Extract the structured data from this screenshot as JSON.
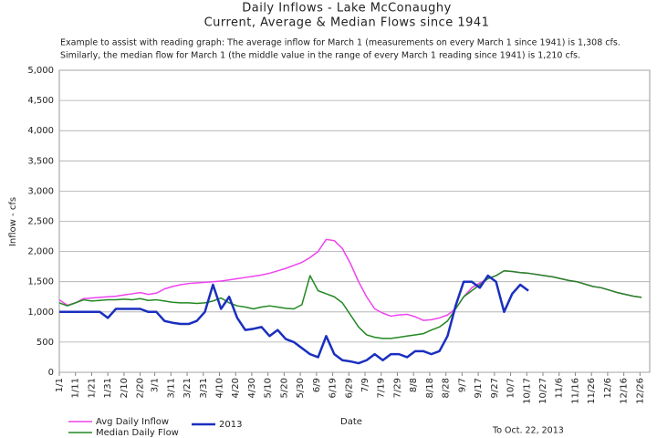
{
  "chart_data": {
    "type": "line",
    "title": "Daily Inflows - Lake McConaughy",
    "subtitle": "Current, Average & Median Flows since 1941",
    "annotations": [
      "Example to assist with reading graph:  The average inflow for March 1 (measurements on every March 1 since 1941) is 1,308 cfs.",
      "Similarly,  the median flow for March 1 (the middle value in the range of every March 1 reading since 1941)  is 1,210 cfs.",
      "To Oct. 22, 2013"
    ],
    "y_label": "Inflow  -  cfs",
    "x_label": "Date",
    "x": [
      1,
      6,
      11,
      16,
      21,
      26,
      31,
      36,
      41,
      46,
      51,
      56,
      61,
      66,
      71,
      76,
      81,
      86,
      91,
      96,
      101,
      106,
      111,
      116,
      121,
      126,
      131,
      136,
      141,
      146,
      151,
      156,
      161,
      166,
      171,
      176,
      181,
      186,
      191,
      196,
      201,
      206,
      211,
      216,
      221,
      226,
      231,
      236,
      241,
      246,
      251,
      256,
      261,
      266,
      271,
      276,
      281,
      286,
      291,
      296,
      301,
      306,
      311,
      316,
      321,
      326,
      331,
      336,
      341,
      346,
      351,
      356,
      361
    ],
    "xlim": [
      1,
      366
    ],
    "xticks": [
      {
        "value": 1,
        "label": "1/1"
      },
      {
        "value": 11,
        "label": "1/11"
      },
      {
        "value": 21,
        "label": "1/21"
      },
      {
        "value": 31,
        "label": "1/31"
      },
      {
        "value": 41,
        "label": "2/10"
      },
      {
        "value": 51,
        "label": "2/20"
      },
      {
        "value": 60,
        "label": "3/1"
      },
      {
        "value": 70,
        "label": "3/11"
      },
      {
        "value": 80,
        "label": "3/21"
      },
      {
        "value": 90,
        "label": "3/31"
      },
      {
        "value": 100,
        "label": "4/10"
      },
      {
        "value": 110,
        "label": "4/20"
      },
      {
        "value": 120,
        "label": "4/30"
      },
      {
        "value": 130,
        "label": "5/10"
      },
      {
        "value": 140,
        "label": "5/20"
      },
      {
        "value": 150,
        "label": "5/30"
      },
      {
        "value": 160,
        "label": "6/9"
      },
      {
        "value": 170,
        "label": "6/19"
      },
      {
        "value": 180,
        "label": "6/29"
      },
      {
        "value": 190,
        "label": "7/9"
      },
      {
        "value": 200,
        "label": "7/19"
      },
      {
        "value": 210,
        "label": "7/29"
      },
      {
        "value": 220,
        "label": "8/8"
      },
      {
        "value": 230,
        "label": "8/18"
      },
      {
        "value": 240,
        "label": "8/28"
      },
      {
        "value": 250,
        "label": "9/7"
      },
      {
        "value": 260,
        "label": "9/17"
      },
      {
        "value": 270,
        "label": "9/27"
      },
      {
        "value": 280,
        "label": "10/7"
      },
      {
        "value": 290,
        "label": "10/17"
      },
      {
        "value": 300,
        "label": "10/27"
      },
      {
        "value": 310,
        "label": "11/6"
      },
      {
        "value": 320,
        "label": "11/16"
      },
      {
        "value": 330,
        "label": "11/26"
      },
      {
        "value": 340,
        "label": "12/6"
      },
      {
        "value": 350,
        "label": "12/16"
      },
      {
        "value": 360,
        "label": "12/26"
      }
    ],
    "ylim": [
      0,
      5000
    ],
    "yticks": [
      0,
      500,
      {
        "value": 1000,
        "label": "1,000"
      },
      {
        "value": 1500,
        "label": "1,500"
      },
      {
        "value": 2000,
        "label": "2,000"
      },
      {
        "value": 2500,
        "label": "2,500"
      },
      {
        "value": 3000,
        "label": "3,000"
      },
      {
        "value": 3500,
        "label": "3,500"
      },
      {
        "value": 4000,
        "label": "4,000"
      },
      {
        "value": 4500,
        "label": "4,500"
      },
      {
        "value": 5000,
        "label": "5,000"
      }
    ],
    "grid": true,
    "series": [
      {
        "name": "Avg Daily Inflow",
        "color": "#ee44ee",
        "width": 1.5,
        "values": [
          1200,
          1110,
          1150,
          1220,
          1230,
          1240,
          1250,
          1260,
          1280,
          1300,
          1320,
          1290,
          1310,
          1380,
          1420,
          1450,
          1470,
          1480,
          1490,
          1500,
          1510,
          1530,
          1550,
          1570,
          1590,
          1610,
          1640,
          1680,
          1720,
          1770,
          1820,
          1900,
          2000,
          2200,
          2180,
          2050,
          1800,
          1500,
          1250,
          1050,
          980,
          930,
          950,
          960,
          920,
          860,
          870,
          900,
          950,
          1050,
          1250,
          1400,
          1480,
          1550,
          1600,
          1680,
          1670,
          1650,
          1640,
          1620,
          1600,
          1580,
          1550,
          1520,
          1500,
          1460,
          1420,
          1400,
          1360,
          1320,
          1290,
          1260,
          1240
        ]
      },
      {
        "name": "Median Daily Flow",
        "color": "#228822",
        "width": 1.5,
        "values": [
          1150,
          1100,
          1150,
          1200,
          1180,
          1190,
          1200,
          1200,
          1210,
          1200,
          1220,
          1190,
          1200,
          1180,
          1160,
          1150,
          1150,
          1140,
          1150,
          1180,
          1230,
          1150,
          1100,
          1080,
          1050,
          1080,
          1100,
          1080,
          1060,
          1050,
          1120,
          1600,
          1350,
          1300,
          1250,
          1150,
          950,
          750,
          620,
          580,
          560,
          560,
          580,
          600,
          620,
          640,
          700,
          750,
          850,
          1050,
          1250,
          1350,
          1450,
          1550,
          1600,
          1680,
          1670,
          1650,
          1640,
          1620,
          1600,
          1580,
          1550,
          1520,
          1500,
          1460,
          1420,
          1400,
          1360,
          1320,
          1290,
          1260,
          1240
        ]
      },
      {
        "name": "2013",
        "color": "#1a2fbf",
        "width": 2.5,
        "values": [
          1000,
          1000,
          1000,
          1000,
          1000,
          1000,
          900,
          1050,
          1050,
          1050,
          1050,
          1000,
          1000,
          850,
          820,
          800,
          800,
          850,
          1000,
          1450,
          1050,
          1250,
          900,
          700,
          720,
          750,
          600,
          700,
          550,
          500,
          400,
          300,
          250,
          600,
          300,
          200,
          180,
          150,
          200,
          300,
          200,
          300,
          300,
          250,
          350,
          350,
          300,
          350,
          600,
          1100,
          1500,
          1500,
          1400,
          1600,
          1500,
          1000,
          1300,
          1450,
          1350,
          null,
          null,
          null,
          null,
          null,
          null,
          null,
          null,
          null,
          null,
          null,
          null,
          null,
          null
        ]
      }
    ]
  }
}
